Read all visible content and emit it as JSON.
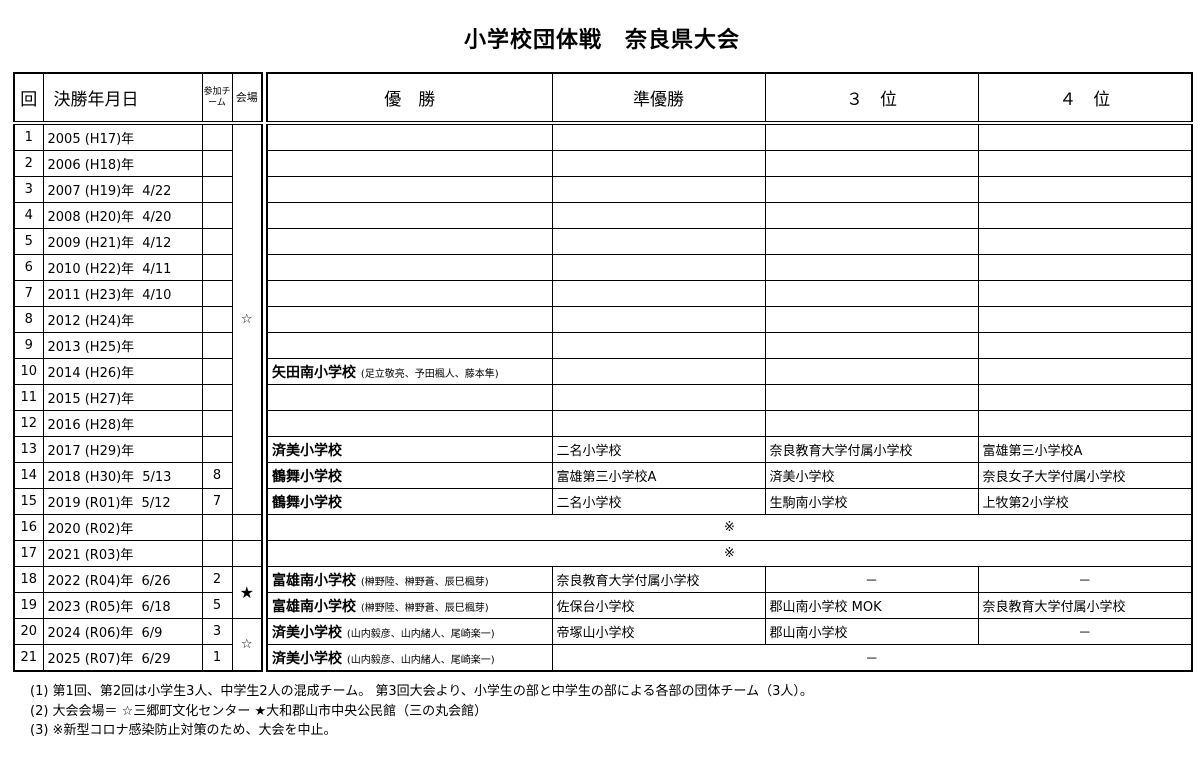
{
  "title": "小学校団体戦　奈良県大会",
  "headers": {
    "no": "回",
    "date": "決勝年月日",
    "teams": "参加チーム",
    "venue": "会場",
    "winner": "優　勝",
    "runner_up": "準優勝",
    "third": "３　位",
    "fourth": "４　位"
  },
  "venue_marks": {
    "sango": "☆",
    "yamato": "★"
  },
  "rows": [
    {
      "no": "1",
      "year": "2005 (H17)年",
      "date": "",
      "teams": "",
      "winner": "",
      "members": "",
      "runner_up": "",
      "third": "",
      "fourth": ""
    },
    {
      "no": "2",
      "year": "2006 (H18)年",
      "date": "",
      "teams": "",
      "winner": "",
      "members": "",
      "runner_up": "",
      "third": "",
      "fourth": ""
    },
    {
      "no": "3",
      "year": "2007 (H19)年",
      "date": "4/22",
      "teams": "",
      "winner": "",
      "members": "",
      "runner_up": "",
      "third": "",
      "fourth": ""
    },
    {
      "no": "4",
      "year": "2008 (H20)年",
      "date": "4/20",
      "teams": "",
      "winner": "",
      "members": "",
      "runner_up": "",
      "third": "",
      "fourth": ""
    },
    {
      "no": "5",
      "year": "2009 (H21)年",
      "date": "4/12",
      "teams": "",
      "winner": "",
      "members": "",
      "runner_up": "",
      "third": "",
      "fourth": ""
    },
    {
      "no": "6",
      "year": "2010 (H22)年",
      "date": "4/11",
      "teams": "",
      "winner": "",
      "members": "",
      "runner_up": "",
      "third": "",
      "fourth": ""
    },
    {
      "no": "7",
      "year": "2011 (H23)年",
      "date": "4/10",
      "teams": "",
      "winner": "",
      "members": "",
      "runner_up": "",
      "third": "",
      "fourth": ""
    },
    {
      "no": "8",
      "year": "2012 (H24)年",
      "date": "",
      "teams": "",
      "winner": "",
      "members": "",
      "runner_up": "",
      "third": "",
      "fourth": ""
    },
    {
      "no": "9",
      "year": "2013 (H25)年",
      "date": "",
      "teams": "",
      "winner": "",
      "members": "",
      "runner_up": "",
      "third": "",
      "fourth": ""
    },
    {
      "no": "10",
      "year": "2014 (H26)年",
      "date": "",
      "teams": "",
      "winner": "矢田南小学校",
      "members": "(足立敬亮、予田楓人、藤本隼)",
      "runner_up": "",
      "third": "",
      "fourth": ""
    },
    {
      "no": "11",
      "year": "2015 (H27)年",
      "date": "",
      "teams": "",
      "winner": "",
      "members": "",
      "runner_up": "",
      "third": "",
      "fourth": ""
    },
    {
      "no": "12",
      "year": "2016 (H28)年",
      "date": "",
      "teams": "",
      "winner": "",
      "members": "",
      "runner_up": "",
      "third": "",
      "fourth": ""
    },
    {
      "no": "13",
      "year": "2017 (H29)年",
      "date": "",
      "teams": "",
      "winner": "済美小学校",
      "members": "",
      "runner_up": "二名小学校",
      "third": "奈良教育大学付属小学校",
      "fourth": "富雄第三小学校A"
    },
    {
      "no": "14",
      "year": "2018 (H30)年",
      "date": "5/13",
      "teams": "8",
      "winner": "鶴舞小学校",
      "members": "",
      "runner_up": "富雄第三小学校A",
      "third": "済美小学校",
      "fourth": "奈良女子大学付属小学校"
    },
    {
      "no": "15",
      "year": "2019 (R01)年",
      "date": "5/12",
      "teams": "7",
      "winner": "鶴舞小学校",
      "members": "",
      "runner_up": "二名小学校",
      "third": "生駒南小学校",
      "fourth": "上牧第2小学校"
    },
    {
      "no": "16",
      "year": "2020 (R02)年",
      "date": "",
      "teams": "",
      "cancelled": "※"
    },
    {
      "no": "17",
      "year": "2021 (R03)年",
      "date": "",
      "teams": "",
      "cancelled": "※"
    },
    {
      "no": "18",
      "year": "2022 (R04)年",
      "date": "6/26",
      "teams": "2",
      "winner": "富雄南小学校",
      "members": "(榊野陸、榊野蒼、辰巳楓芽)",
      "runner_up": "奈良教育大学付属小学校",
      "third": "－",
      "fourth": "－"
    },
    {
      "no": "19",
      "year": "2023 (R05)年",
      "date": "6/18",
      "teams": "5",
      "winner": "富雄南小学校",
      "members": "(榊野陸、榊野蒼、辰巳楓芽)",
      "runner_up": "佐保台小学校",
      "third": "郡山南小学校 MOK",
      "fourth": "奈良教育大学付属小学校"
    },
    {
      "no": "20",
      "year": "2024 (R06)年",
      "date": "6/9",
      "teams": "3",
      "winner": "済美小学校",
      "members": "(山内毅彦、山内緒人、尾崎楽一)",
      "runner_up": "帝塚山小学校",
      "third": "郡山南小学校",
      "fourth": "－"
    },
    {
      "no": "21",
      "year": "2025 (R07)年",
      "date": "6/29",
      "teams": "1",
      "winner": "済美小学校",
      "members": "(山内毅彦、山内緒人、尾崎楽一)",
      "others_merged": "－"
    }
  ],
  "notes": [
    "(1) 第1回、第2回は小学生3人、中学生2人の混成チーム。 第3回大会より、小学生の部と中学生の部による各部の団体チーム（3人）。",
    "(2) 大会会場＝ ☆三郷町文化センター ★大和郡山市中央公民館（三の丸会館）",
    "(3) ※新型コロナ感染防止対策のため、大会を中止。"
  ]
}
